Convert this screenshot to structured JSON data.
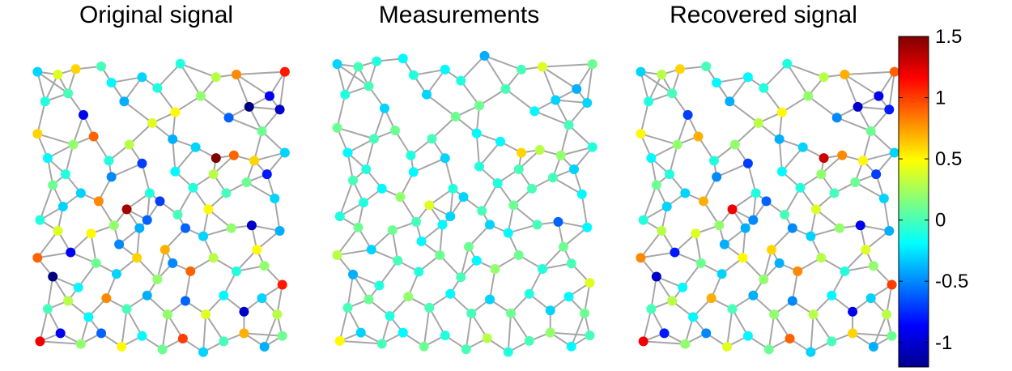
{
  "chart_data": {
    "type": "scatter",
    "subtype": "graph-signal",
    "panels": [
      {
        "title": "Original signal",
        "signal": "original"
      },
      {
        "title": "Measurements",
        "signal": "measured"
      },
      {
        "title": "Recovered signal",
        "signal": "recovered"
      }
    ],
    "colormap": "jet",
    "colorbar": {
      "range": [
        -1.2,
        1.5
      ],
      "ticks": [
        1.5,
        1,
        0.5,
        0,
        -0.5,
        -1
      ],
      "tick_labels": [
        "1.5",
        "1",
        "0.5",
        "0",
        "-0.5",
        "-1"
      ]
    },
    "graph": {
      "edge_color": "#a6a6a6",
      "nodes": [
        [
          0.02,
          0.95,
          -0.3,
          -0.3,
          -0.3
        ],
        [
          0.1,
          0.94,
          0.4,
          0.0,
          0.3
        ],
        [
          0.17,
          0.96,
          0.6,
          -0.1,
          0.6
        ],
        [
          0.27,
          0.97,
          0.0,
          -0.2,
          0.0
        ],
        [
          0.43,
          0.93,
          -0.3,
          -0.2,
          -0.2
        ],
        [
          0.58,
          0.98,
          -0.1,
          -0.4,
          -0.1
        ],
        [
          0.72,
          0.93,
          0.3,
          0.0,
          0.3
        ],
        [
          0.8,
          0.94,
          0.8,
          0.4,
          0.7
        ],
        [
          0.93,
          0.86,
          -0.9,
          -0.4,
          -0.9
        ],
        [
          0.99,
          0.95,
          1.1,
          0.1,
          0.9
        ],
        [
          0.97,
          0.81,
          -1.0,
          -0.3,
          -0.8
        ],
        [
          0.85,
          0.82,
          -1.2,
          -0.3,
          -1.0
        ],
        [
          0.02,
          0.72,
          0.6,
          0.1,
          0.5
        ],
        [
          0.06,
          0.63,
          -0.2,
          -0.2,
          -0.2
        ],
        [
          0.2,
          0.79,
          -0.9,
          -0.3,
          -0.7
        ],
        [
          0.24,
          0.71,
          0.9,
          0.1,
          0.7
        ],
        [
          0.36,
          0.84,
          -0.4,
          -0.3,
          -0.4
        ],
        [
          0.49,
          0.89,
          -0.1,
          -0.1,
          -0.1
        ],
        [
          0.56,
          0.8,
          0.5,
          0.1,
          0.5
        ],
        [
          0.55,
          0.7,
          -0.4,
          -0.2,
          -0.4
        ],
        [
          0.38,
          0.68,
          0.3,
          0.0,
          0.2
        ],
        [
          0.43,
          0.61,
          -0.7,
          -0.3,
          -0.7
        ],
        [
          0.64,
          0.67,
          -0.3,
          -0.2,
          -0.3
        ],
        [
          0.72,
          0.63,
          1.5,
          0.6,
          1.3
        ],
        [
          0.79,
          0.64,
          0.9,
          0.3,
          0.8
        ],
        [
          0.9,
          0.73,
          0.1,
          0.0,
          0.1
        ],
        [
          0.87,
          0.62,
          0.6,
          0.2,
          0.5
        ],
        [
          0.99,
          0.65,
          -0.3,
          -0.1,
          -0.3
        ],
        [
          0.08,
          0.53,
          0.1,
          0.0,
          0.1
        ],
        [
          0.13,
          0.57,
          -0.1,
          -0.1,
          -0.1
        ],
        [
          0.19,
          0.5,
          -0.3,
          -0.2,
          -0.3
        ],
        [
          0.26,
          0.47,
          0.8,
          0.2,
          0.7
        ],
        [
          0.31,
          0.56,
          -0.5,
          -0.2,
          -0.5
        ],
        [
          0.37,
          0.44,
          1.4,
          0.4,
          1.2
        ],
        [
          0.45,
          0.4,
          -0.6,
          -0.3,
          -0.5
        ],
        [
          0.5,
          0.47,
          -0.7,
          -0.3,
          -0.6
        ],
        [
          0.56,
          0.58,
          -0.2,
          -0.1,
          -0.2
        ],
        [
          0.63,
          0.52,
          -0.1,
          -0.1,
          -0.1
        ],
        [
          0.69,
          0.44,
          0.5,
          0.1,
          0.4
        ],
        [
          0.76,
          0.5,
          0.0,
          0.0,
          0.0
        ],
        [
          0.84,
          0.54,
          0.1,
          0.0,
          0.1
        ],
        [
          0.95,
          0.48,
          -0.3,
          -0.2,
          -0.3
        ],
        [
          0.03,
          0.4,
          -0.1,
          -0.1,
          -0.1
        ],
        [
          0.1,
          0.36,
          0.4,
          0.1,
          0.3
        ],
        [
          0.15,
          0.28,
          -0.9,
          -0.3,
          -0.8
        ],
        [
          0.23,
          0.35,
          0.5,
          0.1,
          0.4
        ],
        [
          0.32,
          0.38,
          0.2,
          0.0,
          0.2
        ],
        [
          0.42,
          0.37,
          -0.4,
          -0.2,
          -0.4
        ],
        [
          0.52,
          0.29,
          0.7,
          0.1,
          0.6
        ],
        [
          0.6,
          0.37,
          -0.6,
          -0.3,
          -0.5
        ],
        [
          0.67,
          0.34,
          -0.3,
          -0.2,
          -0.3
        ],
        [
          0.78,
          0.37,
          0.2,
          0.0,
          0.2
        ],
        [
          0.86,
          0.38,
          -1.0,
          -0.6,
          -0.9
        ],
        [
          0.97,
          0.36,
          -0.4,
          -0.2,
          -0.4
        ],
        [
          0.02,
          0.26,
          0.9,
          0.3,
          0.8
        ],
        [
          0.08,
          0.19,
          -1.2,
          -0.4,
          -1.0
        ],
        [
          0.18,
          0.15,
          -0.2,
          -0.1,
          -0.2
        ],
        [
          0.25,
          0.24,
          0.1,
          0.0,
          0.1
        ],
        [
          0.33,
          0.2,
          -0.3,
          -0.1,
          -0.3
        ],
        [
          0.41,
          0.26,
          0.6,
          0.1,
          0.5
        ],
        [
          0.49,
          0.18,
          0.2,
          0.0,
          0.2
        ],
        [
          0.55,
          0.24,
          -0.5,
          -0.2,
          -0.4
        ],
        [
          0.62,
          0.21,
          0.9,
          0.2,
          0.8
        ],
        [
          0.71,
          0.26,
          0.3,
          0.1,
          0.3
        ],
        [
          0.8,
          0.21,
          -0.1,
          -0.1,
          -0.1
        ],
        [
          0.91,
          0.23,
          0.2,
          0.0,
          0.2
        ],
        [
          0.98,
          0.16,
          1.1,
          0.4,
          1.0
        ],
        [
          0.06,
          0.07,
          0.0,
          0.0,
          0.0
        ],
        [
          0.14,
          0.1,
          0.3,
          0.1,
          0.3
        ],
        [
          0.22,
          0.04,
          -0.2,
          -0.1,
          -0.2
        ],
        [
          0.29,
          0.11,
          0.8,
          0.2,
          0.7
        ],
        [
          0.37,
          0.07,
          0.0,
          0.0,
          0.0
        ],
        [
          0.45,
          0.12,
          -0.4,
          -0.2,
          -0.4
        ],
        [
          0.53,
          0.05,
          0.2,
          0.0,
          0.2
        ],
        [
          0.6,
          0.1,
          -0.6,
          -0.3,
          -0.5
        ],
        [
          0.68,
          0.05,
          0.4,
          0.1,
          0.3
        ],
        [
          0.75,
          0.12,
          -0.2,
          -0.1,
          -0.2
        ],
        [
          0.83,
          0.06,
          -1.0,
          -0.3,
          -0.9
        ],
        [
          0.9,
          0.11,
          -0.3,
          -0.2,
          -0.3
        ],
        [
          0.96,
          0.05,
          0.3,
          0.1,
          0.3
        ],
        [
          0.03,
          -0.05,
          1.2,
          0.5,
          1.2
        ],
        [
          0.11,
          -0.02,
          -0.9,
          -0.3,
          -0.8
        ],
        [
          0.19,
          -0.06,
          0.2,
          0.0,
          0.2
        ],
        [
          0.27,
          -0.02,
          -0.6,
          -0.2,
          -0.5
        ],
        [
          0.35,
          -0.07,
          0.5,
          0.1,
          0.4
        ],
        [
          0.43,
          -0.03,
          -0.2,
          -0.1,
          -0.2
        ],
        [
          0.51,
          -0.08,
          0.1,
          0.0,
          0.1
        ],
        [
          0.59,
          -0.04,
          1.0,
          0.3,
          0.9
        ],
        [
          0.67,
          -0.09,
          -0.3,
          -0.1,
          -0.3
        ],
        [
          0.75,
          -0.05,
          0.0,
          0.0,
          0.0
        ],
        [
          0.83,
          -0.02,
          0.7,
          0.2,
          0.6
        ],
        [
          0.91,
          -0.07,
          -0.4,
          -0.2,
          -0.4
        ],
        [
          0.98,
          -0.03,
          0.1,
          0.0,
          0.1
        ],
        [
          0.05,
          0.84,
          -0.1,
          -0.1,
          -0.1
        ],
        [
          0.14,
          0.87,
          0.0,
          0.0,
          0.0
        ],
        [
          0.31,
          0.91,
          -0.2,
          -0.1,
          -0.2
        ],
        [
          0.66,
          0.86,
          0.2,
          0.0,
          0.2
        ],
        [
          0.77,
          0.78,
          -0.6,
          -0.2,
          -0.5
        ],
        [
          0.47,
          0.76,
          0.4,
          0.1,
          0.3
        ],
        [
          0.3,
          0.62,
          -0.1,
          -0.1,
          -0.1
        ],
        [
          0.16,
          0.68,
          0.2,
          0.0,
          0.2
        ],
        [
          0.92,
          0.57,
          -0.8,
          -0.3,
          -0.7
        ],
        [
          0.71,
          0.57,
          0.3,
          0.0,
          0.2
        ],
        [
          0.34,
          0.31,
          -0.5,
          -0.2,
          -0.4
        ],
        [
          0.57,
          0.42,
          0.0,
          0.0,
          0.0
        ],
        [
          0.88,
          0.29,
          0.5,
          0.1,
          0.4
        ],
        [
          0.12,
          0.45,
          -0.3,
          -0.1,
          -0.3
        ],
        [
          0.46,
          0.5,
          -0.1,
          -0.1,
          -0.1
        ]
      ]
    }
  }
}
